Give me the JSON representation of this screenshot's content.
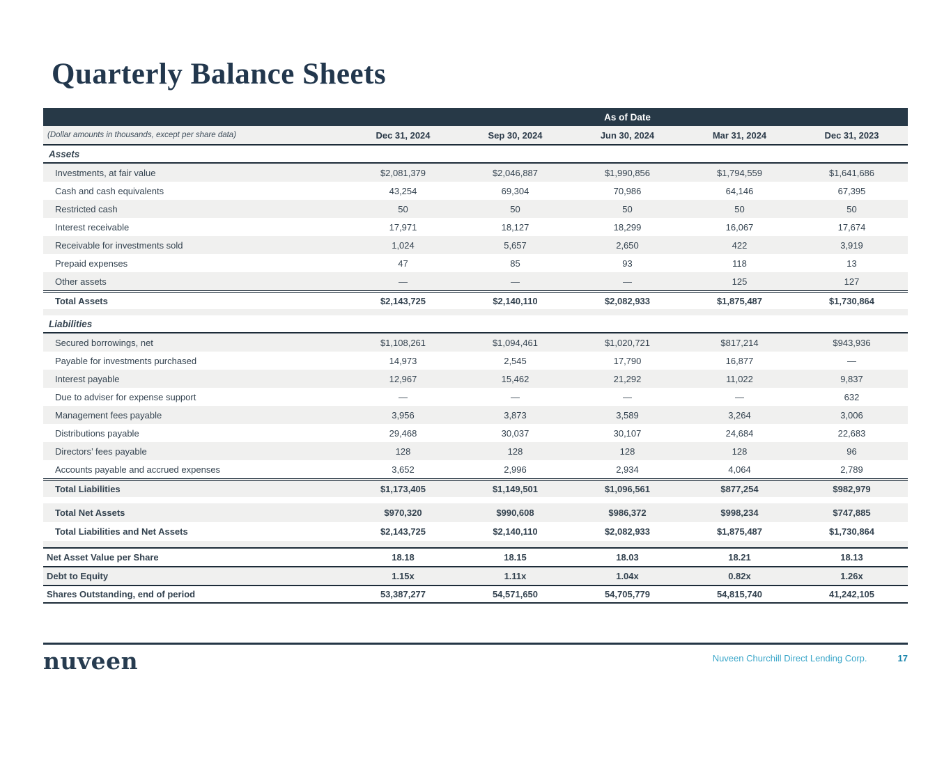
{
  "title": "Quarterly Balance Sheets",
  "table": {
    "as_of_date_label": "As of Date",
    "note": "(Dollar amounts in thousands, except per share data)",
    "columns": [
      "Dec 31, 2024",
      "Sep 30, 2024",
      "Jun 30, 2024",
      "Mar 31, 2024",
      "Dec 31, 2023"
    ],
    "rows": [
      {
        "type": "section",
        "label": "Assets"
      },
      {
        "type": "item",
        "shade": true,
        "label": "Investments, at fair value",
        "values": [
          "$2,081,379",
          "$2,046,887",
          "$1,990,856",
          "$1,794,559",
          "$1,641,686"
        ]
      },
      {
        "type": "item",
        "label": "Cash and cash equivalents",
        "values": [
          "43,254",
          "69,304",
          "70,986",
          "64,146",
          "67,395"
        ]
      },
      {
        "type": "item",
        "shade": true,
        "label": "Restricted cash",
        "values": [
          "50",
          "50",
          "50",
          "50",
          "50"
        ]
      },
      {
        "type": "item",
        "label": "Interest receivable",
        "values": [
          "17,971",
          "18,127",
          "18,299",
          "16,067",
          "17,674"
        ]
      },
      {
        "type": "item",
        "shade": true,
        "label": "Receivable for investments sold",
        "values": [
          "1,024",
          "5,657",
          "2,650",
          "422",
          "3,919"
        ]
      },
      {
        "type": "item",
        "label": "Prepaid expenses",
        "values": [
          "47",
          "85",
          "93",
          "118",
          "13"
        ]
      },
      {
        "type": "item",
        "shade": true,
        "label": "Other assets",
        "values": [
          "—",
          "—",
          "—",
          "125",
          "127"
        ]
      },
      {
        "type": "total",
        "label": "Total Assets",
        "values": [
          "$2,143,725",
          "$2,140,110",
          "$2,082,933",
          "$1,875,487",
          "$1,730,864"
        ]
      },
      {
        "type": "spacer",
        "shade": true
      },
      {
        "type": "section",
        "label": "Liabilities"
      },
      {
        "type": "item",
        "shade": true,
        "label": "Secured borrowings, net",
        "values": [
          "$1,108,261",
          "$1,094,461",
          "$1,020,721",
          "$817,214",
          "$943,936"
        ]
      },
      {
        "type": "item",
        "label": "Payable for investments purchased",
        "values": [
          "14,973",
          "2,545",
          "17,790",
          "16,877",
          "—"
        ]
      },
      {
        "type": "item",
        "shade": true,
        "label": "Interest payable",
        "values": [
          "12,967",
          "15,462",
          "21,292",
          "11,022",
          "9,837"
        ]
      },
      {
        "type": "item",
        "label": "Due to adviser for expense support",
        "values": [
          "—",
          "—",
          "—",
          "—",
          "632"
        ]
      },
      {
        "type": "item",
        "shade": true,
        "label": "Management fees payable",
        "values": [
          "3,956",
          "3,873",
          "3,589",
          "3,264",
          "3,006"
        ]
      },
      {
        "type": "item",
        "label": "Distributions payable",
        "values": [
          "29,468",
          "30,037",
          "30,107",
          "24,684",
          "22,683"
        ]
      },
      {
        "type": "item",
        "shade": true,
        "label": "Directors’ fees payable",
        "values": [
          "128",
          "128",
          "128",
          "128",
          "96"
        ]
      },
      {
        "type": "item",
        "label": "Accounts payable and accrued expenses",
        "values": [
          "3,652",
          "2,996",
          "2,934",
          "4,064",
          "2,789"
        ]
      },
      {
        "type": "total",
        "shade": true,
        "label": "Total Liabilities",
        "values": [
          "$1,173,405",
          "$1,149,501",
          "$1,096,561",
          "$877,254",
          "$982,979"
        ]
      },
      {
        "type": "spacer"
      },
      {
        "type": "grand",
        "shade": true,
        "label": "Total Net Assets",
        "values": [
          "$970,320",
          "$990,608",
          "$986,372",
          "$998,234",
          "$747,885"
        ]
      },
      {
        "type": "grand",
        "label": "Total Liabilities and Net Assets",
        "values": [
          "$2,143,725",
          "$2,140,110",
          "$2,082,933",
          "$1,875,487",
          "$1,730,864"
        ]
      },
      {
        "type": "spacer",
        "shade": true
      },
      {
        "type": "metric",
        "label": "Net Asset Value per Share",
        "values": [
          "18.18",
          "18.15",
          "18.03",
          "18.21",
          "18.13"
        ]
      },
      {
        "type": "metric",
        "shade": true,
        "label": "Debt to Equity",
        "values": [
          "1.15x",
          "1.11x",
          "1.04x",
          "0.82x",
          "1.26x"
        ]
      },
      {
        "type": "metric",
        "end": true,
        "label": "Shares Outstanding, end of period",
        "values": [
          "53,387,277",
          "54,571,650",
          "54,705,779",
          "54,815,740",
          "41,242,105"
        ]
      }
    ]
  },
  "footer": {
    "logo": "nuveen",
    "company": "Nuveen Churchill Direct Lending Corp.",
    "page": "17"
  },
  "colors": {
    "bar": "#273947",
    "stripe": "#f0f0ef",
    "border": "#1d2c39",
    "text": "#33424f",
    "heading": "#22374d",
    "teal": "#3aa6c9",
    "pageblue": "#1c86ad"
  }
}
